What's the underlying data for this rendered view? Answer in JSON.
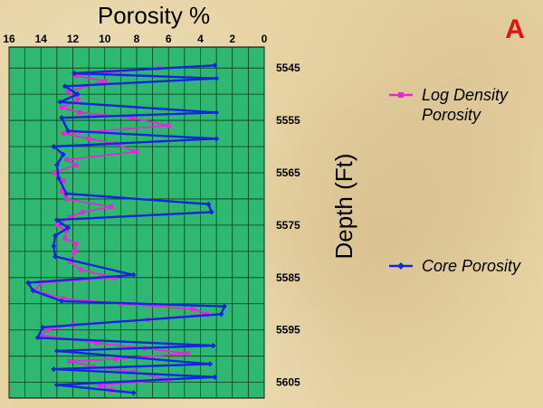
{
  "panel_label": "A",
  "colors": {
    "plot_bg": "#2fb871",
    "grid": "#0b3a1d",
    "core": "#1426e0",
    "log": "#e12ad8",
    "text": "#000000",
    "panel_label": "#e01414"
  },
  "chart_data": {
    "type": "line",
    "title": "Porosity %",
    "xlabel": "Porosity %",
    "ylabel": "Depth (Ft)",
    "x_reversed": true,
    "y_reversed": true,
    "xlim": [
      0,
      16
    ],
    "ylim": [
      5541,
      5608
    ],
    "x_ticks": [
      16,
      14,
      12,
      10,
      8,
      6,
      4,
      2,
      0
    ],
    "y_ticks": [
      5545,
      5555,
      5565,
      5575,
      5585,
      5595,
      5605
    ],
    "grid": true,
    "legend_position": "right",
    "series": [
      {
        "name": "Log Density Porosity",
        "color_key": "log",
        "points": [
          [
            6.6,
            5545
          ],
          [
            11.8,
            5546.5
          ],
          [
            10.0,
            5547.5
          ],
          [
            12.3,
            5549.5
          ],
          [
            11.7,
            5551
          ],
          [
            12.7,
            5552.5
          ],
          [
            11.6,
            5553.5
          ],
          [
            8.3,
            5554.5
          ],
          [
            6.0,
            5556
          ],
          [
            12.6,
            5557.5
          ],
          [
            11.0,
            5558.5
          ],
          [
            9.3,
            5559.5
          ],
          [
            8.0,
            5561
          ],
          [
            12.4,
            5562.5
          ],
          [
            11.8,
            5563.5
          ],
          [
            13.2,
            5565
          ],
          [
            12.6,
            5566.5
          ],
          [
            12.7,
            5568.5
          ],
          [
            12.4,
            5570
          ],
          [
            9.6,
            5571.5
          ],
          [
            11.4,
            5572.5
          ],
          [
            12.2,
            5573.5
          ],
          [
            13.0,
            5575
          ],
          [
            12.4,
            5576
          ],
          [
            12.5,
            5577.5
          ],
          [
            11.8,
            5578.5
          ],
          [
            11.9,
            5580
          ],
          [
            12.2,
            5582
          ],
          [
            11.5,
            5583.5
          ],
          [
            9.4,
            5585
          ],
          [
            14.0,
            5586
          ],
          [
            14.4,
            5587.5
          ],
          [
            12.6,
            5589
          ],
          [
            9.0,
            5590
          ],
          [
            4.5,
            5591
          ],
          [
            3.6,
            5592
          ],
          [
            7.3,
            5593
          ],
          [
            12.0,
            5594
          ],
          [
            13.6,
            5595
          ],
          [
            14.0,
            5596
          ],
          [
            10.5,
            5597.5
          ],
          [
            7.5,
            5598.5
          ],
          [
            4.8,
            5599.5
          ],
          [
            9.3,
            5600.5
          ],
          [
            12.2,
            5601
          ],
          [
            10.7,
            5602
          ],
          [
            8.2,
            5603
          ],
          [
            6.0,
            5604.5
          ],
          [
            10.3,
            5605.5
          ],
          [
            9.6,
            5606.5
          ]
        ]
      },
      {
        "name": "Core Porosity",
        "color_key": "core",
        "points": [
          [
            3.1,
            5544.5
          ],
          [
            11.9,
            5546
          ],
          [
            3.0,
            5547
          ],
          [
            12.5,
            5548.5
          ],
          [
            11.7,
            5550
          ],
          [
            12.8,
            5551.5
          ],
          [
            3.0,
            5553.5
          ],
          [
            12.7,
            5554.5
          ],
          [
            12.3,
            5557
          ],
          [
            3.0,
            5558.5
          ],
          [
            13.2,
            5560
          ],
          [
            12.6,
            5561.5
          ],
          [
            13.0,
            5563.5
          ],
          [
            12.9,
            5566
          ],
          [
            12.4,
            5569
          ],
          [
            3.5,
            5571
          ],
          [
            3.3,
            5572.5
          ],
          [
            13.0,
            5574
          ],
          [
            12.3,
            5575.5
          ],
          [
            13.1,
            5577
          ],
          [
            13.2,
            5579
          ],
          [
            13.1,
            5581
          ],
          [
            8.2,
            5584.5
          ],
          [
            14.8,
            5586
          ],
          [
            14.5,
            5587.5
          ],
          [
            12.7,
            5589.5
          ],
          [
            2.5,
            5590.5
          ],
          [
            2.7,
            5592
          ],
          [
            13.9,
            5594.5
          ],
          [
            14.2,
            5596.5
          ],
          [
            3.2,
            5598
          ],
          [
            13.0,
            5599
          ],
          [
            3.4,
            5601.5
          ],
          [
            13.2,
            5602.5
          ],
          [
            3.1,
            5604
          ],
          [
            13.0,
            5605.5
          ],
          [
            8.2,
            5607
          ]
        ]
      }
    ]
  }
}
